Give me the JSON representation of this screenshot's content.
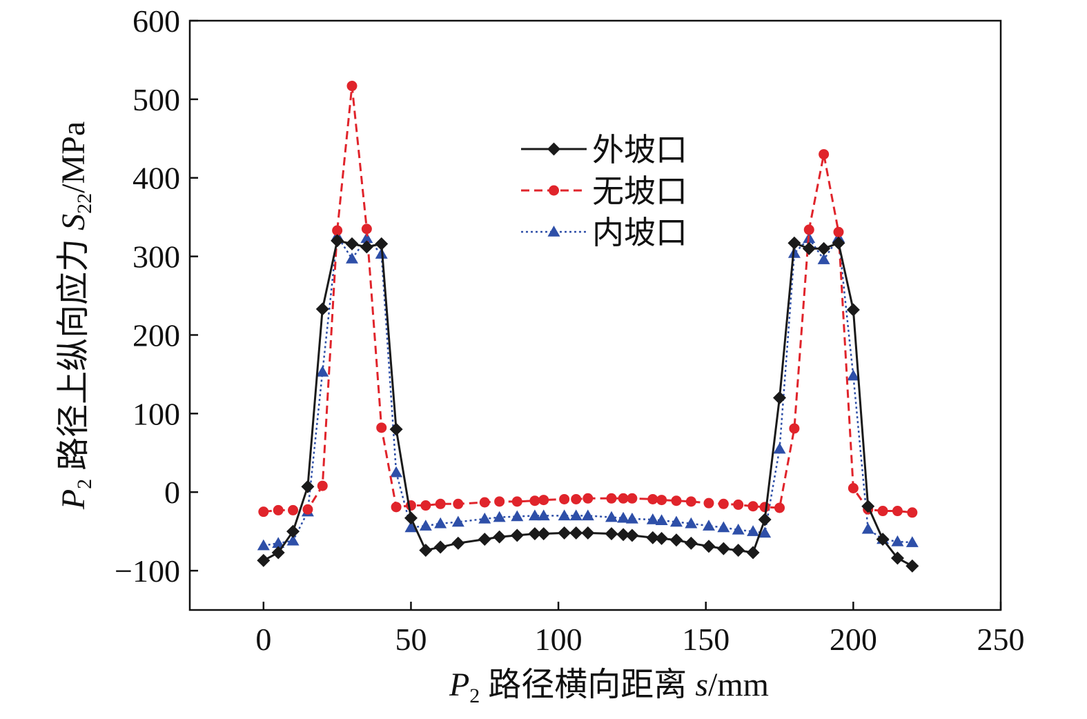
{
  "chart_data": {
    "type": "line",
    "title": "",
    "xlabel": {
      "prefix": "P",
      "sub": "2",
      "rest": " 路径横向距离 ",
      "var": "s",
      "unit": "/mm"
    },
    "ylabel": {
      "prefix": "P",
      "sub": "2",
      "rest": " 路径上纵向应力 ",
      "var": "S",
      "var_sub": "22",
      "unit": "/MPa"
    },
    "xlim": [
      -25,
      250
    ],
    "ylim": [
      -150,
      600
    ],
    "xticks": [
      0,
      50,
      100,
      150,
      200,
      250
    ],
    "yticks": [
      -100,
      0,
      100,
      200,
      300,
      400,
      500,
      600
    ],
    "xtick_labels": [
      "0",
      "50",
      "100",
      "150",
      "200",
      "250"
    ],
    "ytick_labels": [
      "−100",
      "0",
      "100",
      "200",
      "300",
      "400",
      "500",
      "600"
    ],
    "grid": false,
    "legend_position": "upper-center",
    "series": [
      {
        "name": "外坡口",
        "color": "#1a1a1a",
        "dash": "solid",
        "marker": "diamond",
        "x": [
          0,
          5,
          10,
          15,
          20,
          25,
          30,
          35,
          40,
          45,
          50,
          55,
          60,
          66,
          75,
          80,
          86,
          92,
          95,
          102,
          106,
          110,
          118,
          122,
          125,
          132,
          135,
          140,
          145,
          151,
          156,
          161,
          166,
          170,
          175,
          180,
          185,
          190,
          195,
          200,
          205,
          210,
          215,
          220
        ],
        "y": [
          -87,
          -77,
          -50,
          7,
          233,
          320,
          316,
          312,
          316,
          80,
          -33,
          -74,
          -70,
          -65,
          -60,
          -57,
          -55,
          -53,
          -53,
          -52,
          -52,
          -52,
          -53,
          -54,
          -55,
          -58,
          -59,
          -61,
          -65,
          -69,
          -72,
          -74,
          -77,
          -35,
          120,
          317,
          310,
          310,
          317,
          232,
          -18,
          -60,
          -84,
          -94
        ]
      },
      {
        "name": "无坡口",
        "color": "#e0242b",
        "dash": "dashed",
        "marker": "circle",
        "x": [
          0,
          5,
          10,
          15,
          20,
          25,
          30,
          35,
          40,
          45,
          50,
          55,
          60,
          66,
          75,
          80,
          86,
          92,
          95,
          102,
          106,
          110,
          118,
          122,
          125,
          132,
          135,
          140,
          145,
          151,
          156,
          161,
          166,
          170,
          175,
          180,
          185,
          190,
          195,
          200,
          205,
          210,
          215,
          220
        ],
        "y": [
          -25,
          -23,
          -23,
          -22,
          8,
          333,
          517,
          335,
          82,
          -19,
          -17,
          -17,
          -15,
          -15,
          -13,
          -12,
          -12,
          -11,
          -10,
          -9,
          -9,
          -8,
          -8,
          -8,
          -8,
          -9,
          -10,
          -11,
          -12,
          -14,
          -15,
          -16,
          -18,
          -19,
          -20,
          81,
          334,
          430,
          331,
          5,
          -22,
          -24,
          -24,
          -26
        ]
      },
      {
        "name": "内坡口",
        "color": "#2e4fa8",
        "dash": "dotted",
        "marker": "triangle",
        "x": [
          0,
          5,
          10,
          15,
          20,
          25,
          30,
          35,
          40,
          45,
          50,
          55,
          60,
          66,
          75,
          80,
          86,
          92,
          95,
          102,
          106,
          110,
          118,
          122,
          125,
          132,
          135,
          140,
          145,
          151,
          156,
          161,
          166,
          170,
          175,
          180,
          185,
          190,
          195,
          200,
          205,
          210,
          215,
          220
        ],
        "y": [
          -68,
          -65,
          -62,
          -25,
          153,
          326,
          297,
          323,
          303,
          25,
          -45,
          -43,
          -40,
          -38,
          -34,
          -32,
          -31,
          -30,
          -30,
          -30,
          -30,
          -30,
          -32,
          -33,
          -34,
          -35,
          -36,
          -38,
          -40,
          -43,
          -45,
          -48,
          -50,
          -52,
          55,
          304,
          323,
          296,
          324,
          148,
          -47,
          -60,
          -63,
          -64
        ]
      }
    ]
  }
}
